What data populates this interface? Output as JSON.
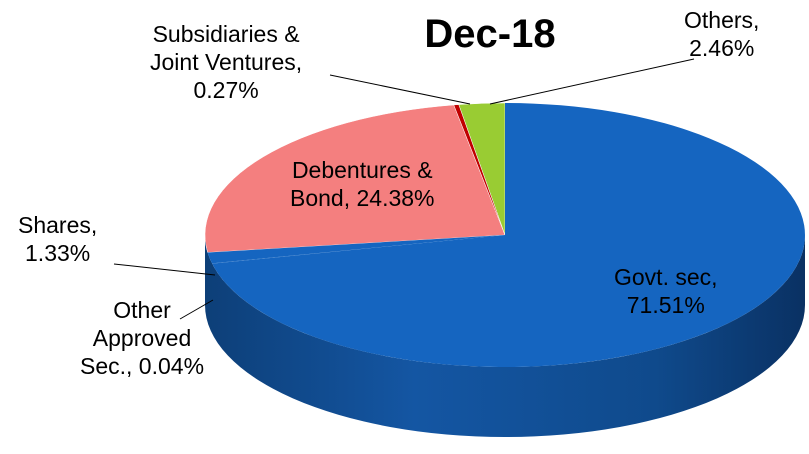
{
  "chart_data": {
    "type": "pie",
    "title": "Dec-18",
    "categories": [
      "Govt. sec",
      "Debentures & Bond",
      "Subsidiaries & Joint Ventures",
      "Others",
      "Shares",
      "Other Approved Sec."
    ],
    "values": [
      71.51,
      24.38,
      0.27,
      2.46,
      1.33,
      0.04
    ],
    "series": [
      {
        "name": "",
        "values": [
          71.51,
          24.38,
          0.27,
          2.46,
          1.33,
          0.04
        ]
      }
    ],
    "colors": [
      "#1565c0",
      "#f47f7f",
      "#c00000",
      "#99cc33",
      "#1565c0",
      "#1565c0"
    ],
    "labels": {
      "govt": [
        "Govt. sec,",
        "71.51%"
      ],
      "debentures": [
        "Debentures &",
        "Bond, 24.38%"
      ],
      "subsidiaries": [
        "Subsidiaries &",
        "Joint Ventures,",
        "0.27%"
      ],
      "others": [
        "Others,",
        "2.46%"
      ],
      "shares": [
        "Shares,",
        "1.33%"
      ],
      "other_approved": [
        "Other",
        "Approved",
        "Sec., 0.04%"
      ]
    },
    "legend": "none"
  }
}
